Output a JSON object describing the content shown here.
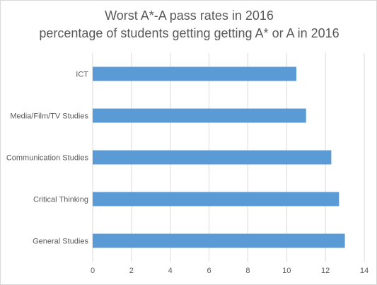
{
  "chart_data": {
    "type": "bar",
    "orientation": "horizontal",
    "title": "Worst A*-A pass rates in 2016",
    "subtitle": "percentage of students getting getting A* or A in 2016",
    "categories": [
      "ICT",
      "Media/Film/TV Studies",
      "Communication Studies",
      "Critical Thinking",
      "General Studies"
    ],
    "values": [
      10.5,
      11.0,
      12.3,
      12.7,
      13.0
    ],
    "xlim": [
      0,
      14
    ],
    "xticks": [
      "0",
      "2",
      "4",
      "6",
      "8",
      "10",
      "12",
      "14"
    ],
    "grid": true,
    "bar_color": "#5b9bd5",
    "grid_color": "#d9d9d9"
  }
}
